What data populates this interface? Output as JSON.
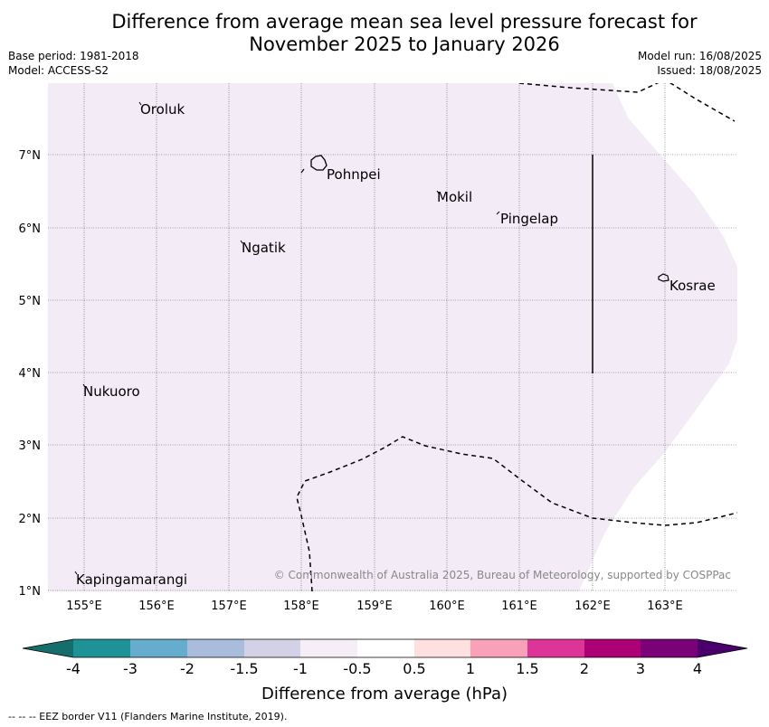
{
  "title": {
    "line1": "Difference from average mean sea level pressure forecast for",
    "line2": "November 2025 to January 2026"
  },
  "meta_left": {
    "base_period": "Base period: 1981-2018",
    "model": "Model: ACCESS-S2"
  },
  "meta_right": {
    "model_run": "Model run: 16/08/2025",
    "issued": "Issued: 18/08/2025"
  },
  "map": {
    "lon_labels": [
      "155°E",
      "156°E",
      "157°E",
      "158°E",
      "159°E",
      "160°E",
      "161°E",
      "162°E",
      "163°E"
    ],
    "lat_labels": [
      "7°N",
      "6°N",
      "5°N",
      "4°N",
      "3°N",
      "2°N",
      "1°N"
    ],
    "islands": [
      "Oroluk",
      "Pohnpei",
      "Mokil",
      "Pingelap",
      "Ngatik",
      "Kosrae",
      "Nukuoro",
      "Kapingamarangi"
    ],
    "field_color": "#f3ebf5",
    "copyright": "© Commonwealth of Australia 2025, Bureau of Meteorology, supported by COSPPac"
  },
  "colorbar": {
    "labels": [
      "-4",
      "-3",
      "-2",
      "-1.5",
      "-1",
      "-0.5",
      "0.5",
      "1",
      "1.5",
      "2",
      "3",
      "4"
    ],
    "colors": [
      "#166e6c",
      "#1d9398",
      "#66accf",
      "#a9bcdc",
      "#d3d1e6",
      "#f6eef7",
      "#ffffff",
      "#fee0e1",
      "#f8a1b9",
      "#dc3597",
      "#ad0077",
      "#7a0177",
      "#49006a"
    ],
    "label": "Difference from average (hPa)"
  },
  "footer": "--  --  -- EEZ border V11 (Flanders Marine Institute, 2019)."
}
